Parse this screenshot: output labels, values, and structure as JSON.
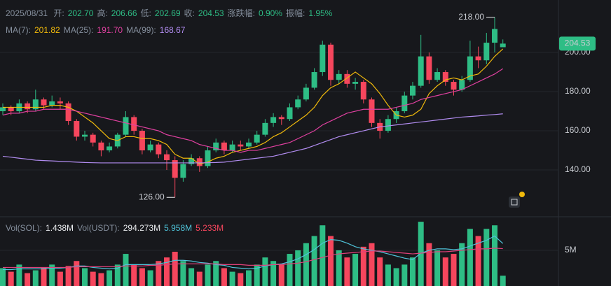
{
  "header": {
    "date": "2025/08/31",
    "fields": [
      {
        "label": "开:",
        "value": "202.70"
      },
      {
        "label": "高:",
        "value": "206.66"
      },
      {
        "label": "低:",
        "value": "202.69"
      },
      {
        "label": "收:",
        "value": "204.53"
      },
      {
        "label": "涨跌幅:",
        "value": "0.90%"
      },
      {
        "label": "振幅:",
        "value": "1.95%"
      }
    ],
    "ma_legend": [
      {
        "label": "MA(7):",
        "value": "201.82"
      },
      {
        "label": "MA(25):",
        "value": "191.70"
      },
      {
        "label": "MA(99):",
        "value": "168.67"
      }
    ],
    "volume_legend": [
      {
        "label": "Vol(SOL):",
        "value": "1.438M"
      },
      {
        "label": "Vol(USDT):",
        "value": "294.273M"
      },
      {
        "label": "",
        "value": "5.958M"
      },
      {
        "label": "",
        "value": "5.233M"
      }
    ]
  },
  "chart_data": [
    {
      "type": "candlestick",
      "up_color": "#2ebd85",
      "down_color": "#f6465d",
      "open": [
        170,
        172,
        170,
        174,
        171,
        176,
        173,
        175,
        174,
        165,
        157,
        158,
        154,
        150,
        152,
        158,
        167,
        160,
        150,
        153,
        148,
        145,
        136,
        143,
        146,
        142,
        150,
        154,
        150,
        153,
        152,
        154,
        158,
        164,
        167,
        166,
        172,
        176,
        182,
        190,
        204,
        186,
        189,
        184,
        185,
        176,
        164,
        160,
        166,
        170,
        178,
        183,
        198,
        186,
        190,
        185,
        181,
        186,
        198,
        196,
        205,
        202.7
      ],
      "high": [
        174,
        173,
        176,
        175,
        181,
        177,
        178,
        177,
        175,
        166,
        160,
        159,
        155,
        154,
        159,
        170,
        168,
        161,
        155,
        154,
        150,
        147,
        145,
        148,
        147,
        152,
        156,
        155,
        155,
        155,
        156,
        160,
        166,
        169,
        168,
        174,
        178,
        184,
        192,
        206,
        205,
        191,
        191,
        187,
        186,
        177,
        166,
        168,
        172,
        180,
        185,
        209,
        200,
        192,
        191,
        186,
        188,
        206,
        203,
        210,
        218,
        206.66
      ],
      "low": [
        168,
        168,
        169,
        169,
        170,
        171,
        172,
        171,
        163,
        155,
        155,
        152,
        147,
        149,
        151,
        157,
        158,
        148,
        149,
        146,
        140,
        126,
        134,
        142,
        139,
        141,
        149,
        148,
        149,
        150,
        151,
        153,
        157,
        162,
        163,
        165,
        171,
        175,
        181,
        188,
        183,
        184,
        182,
        181,
        174,
        162,
        156,
        159,
        164,
        169,
        176,
        182,
        184,
        185,
        183,
        178,
        180,
        185,
        192,
        194,
        200,
        202.69
      ],
      "close": [
        172,
        170,
        174,
        171,
        176,
        173,
        175,
        174,
        165,
        157,
        158,
        154,
        150,
        152,
        158,
        167,
        160,
        150,
        153,
        148,
        145,
        136,
        143,
        146,
        142,
        150,
        154,
        150,
        153,
        152,
        154,
        158,
        164,
        167,
        166,
        172,
        176,
        182,
        190,
        204,
        186,
        189,
        184,
        185,
        176,
        164,
        160,
        166,
        170,
        178,
        183,
        198,
        186,
        190,
        185,
        181,
        186,
        198,
        196,
        205,
        212,
        204.53
      ],
      "ylim": [
        116.8,
        226.8
      ],
      "yticks": [
        {
          "value": 140,
          "label": "140.00"
        },
        {
          "value": 160,
          "label": "160.00"
        },
        {
          "value": 180,
          "label": "180.00"
        },
        {
          "value": 200,
          "label": "200.00"
        }
      ],
      "grid": true,
      "series": [
        {
          "color": "#f0b90b",
          "values": [
            172,
            172,
            172,
            172,
            172,
            172,
            173,
            173,
            172,
            170,
            167,
            164,
            160,
            156,
            155,
            157,
            157,
            156,
            156,
            155,
            153,
            148,
            146,
            146,
            143,
            144,
            146,
            147,
            149,
            150,
            151,
            152,
            154,
            157,
            159,
            162,
            165,
            168,
            172,
            178,
            182,
            184,
            187,
            190,
            187,
            184,
            179,
            173,
            168,
            167,
            168,
            171,
            179,
            183,
            186,
            187,
            186,
            188,
            189,
            193,
            198,
            201.82
          ]
        },
        {
          "color": "#e040a0",
          "values": [
            168,
            169,
            169,
            170,
            170,
            171,
            171,
            171,
            171,
            170,
            169,
            168,
            167,
            166,
            165,
            164,
            163,
            162,
            161,
            160,
            158,
            157,
            156,
            155,
            153,
            152,
            151,
            150,
            150,
            149,
            150,
            150,
            151,
            152,
            153,
            154,
            156,
            158,
            160,
            163,
            165,
            167,
            169,
            170,
            171,
            171,
            171,
            171,
            172,
            173,
            174,
            176,
            177,
            178,
            179,
            180,
            181,
            183,
            185,
            187,
            189,
            191.7
          ]
        },
        {
          "color": "#b18cf0",
          "values": [
            147,
            146.5,
            146,
            145.5,
            145,
            144.8,
            144.6,
            144.4,
            144.2,
            144,
            143.8,
            143.7,
            143.6,
            143.6,
            143.6,
            143.6,
            143.6,
            143.6,
            143.6,
            143.6,
            143.6,
            143.6,
            143.6,
            143.6,
            143.6,
            143.7,
            143.8,
            144,
            144.5,
            145,
            145.5,
            146,
            146.5,
            147,
            148,
            149,
            150,
            151,
            152.5,
            154,
            155.5,
            157,
            158,
            159,
            160,
            161,
            162,
            162.5,
            163,
            163.5,
            164,
            164.5,
            165,
            165.5,
            166,
            166.5,
            167,
            167.3,
            167.6,
            168,
            168.3,
            168.67
          ]
        }
      ],
      "annotations": [
        {
          "index": 60,
          "value": 218,
          "label": "218.00",
          "side": "high"
        },
        {
          "index": 21,
          "value": 126,
          "label": "126.00",
          "side": "low"
        }
      ],
      "last_price": {
        "value": 204.53,
        "label": "204.53"
      }
    },
    {
      "type": "bar",
      "values": [
        2.5,
        2,
        3,
        1.8,
        2.2,
        2.6,
        3,
        2,
        2.8,
        3.5,
        2.5,
        2,
        1.8,
        2.2,
        3,
        4.5,
        3,
        2.5,
        2.2,
        3.5,
        4,
        4.8,
        3.5,
        2.5,
        2,
        3,
        3.5,
        2.5,
        2,
        1.8,
        2.2,
        3,
        4,
        3.5,
        3,
        4.5,
        5,
        6,
        7,
        8.5,
        7,
        5,
        4,
        4.5,
        5.5,
        6,
        4,
        3,
        2.5,
        3,
        4,
        9,
        6,
        5,
        4,
        4.5,
        6,
        8,
        7,
        8,
        8.5,
        1.438
      ],
      "ylim": [
        0,
        9.5
      ],
      "yticks": [
        {
          "value": 5,
          "label": "5M"
        }
      ],
      "series": [
        {
          "color": "#4fc3d9",
          "values": [
            2.3,
            2.3,
            2.4,
            2.4,
            2.4,
            2.4,
            2.5,
            2.5,
            2.6,
            2.8,
            2.8,
            2.6,
            2.5,
            2.4,
            2.5,
            3,
            3,
            3,
            3,
            3.1,
            3.3,
            3.6,
            3.6,
            3.5,
            3.3,
            3.2,
            3,
            2.9,
            2.6,
            2.5,
            2.4,
            2.5,
            2.8,
            3,
            3.1,
            3.4,
            3.8,
            4.4,
            5.1,
            6,
            6.5,
            6.4,
            6,
            5.5,
            5.2,
            5,
            4.8,
            4.5,
            4.2,
            3.9,
            3.7,
            4.6,
            5,
            5.2,
            5.2,
            5.1,
            5.2,
            5.6,
            6,
            6.4,
            7,
            5.958
          ]
        },
        {
          "color": "#e0407a",
          "values": [
            2.6,
            2.6,
            2.6,
            2.6,
            2.6,
            2.6,
            2.6,
            2.6,
            2.6,
            2.7,
            2.7,
            2.7,
            2.7,
            2.7,
            2.7,
            2.8,
            2.8,
            2.8,
            2.9,
            2.9,
            3,
            3.1,
            3.1,
            3.1,
            3.1,
            3.1,
            3.1,
            3,
            3,
            3,
            2.9,
            2.9,
            2.9,
            3,
            3,
            3.1,
            3.2,
            3.4,
            3.7,
            4,
            4.3,
            4.5,
            4.6,
            4.7,
            4.8,
            4.9,
            4.9,
            4.8,
            4.7,
            4.6,
            4.5,
            4.6,
            4.7,
            4.8,
            4.8,
            4.9,
            5,
            5.1,
            5.2,
            5.2,
            5.3,
            5.233
          ]
        }
      ]
    }
  ]
}
